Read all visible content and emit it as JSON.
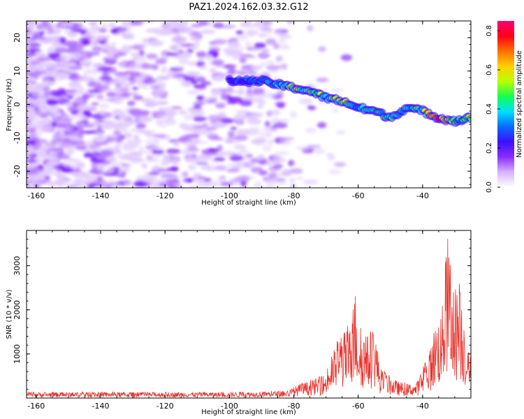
{
  "title": "PAZ1.2024.162.03.32.G12",
  "colors": {
    "signal": "#e8322b",
    "axis": "#000000",
    "rainbow": [
      "#ffffff",
      "#d6b3ff",
      "#8b2cff",
      "#3a10ff",
      "#0a6aff",
      "#00e0ff",
      "#12ff50",
      "#b8ff00",
      "#ffd000",
      "#ff7000",
      "#ff0018",
      "#ff0070"
    ]
  },
  "chart_data": [
    {
      "type": "heatmap",
      "name": "spectrogram",
      "xlabel": "Height of straight line (km)",
      "ylabel": "Frequency (Hz)",
      "xlim": [
        -163,
        -25
      ],
      "ylim": [
        -25,
        25
      ],
      "xticks": [
        -160,
        -140,
        -120,
        -100,
        -80,
        -60,
        -40
      ],
      "yticks": [
        -20,
        -10,
        0,
        10,
        20
      ],
      "colorbar": {
        "label": "Normalized spectral amplitude",
        "range": [
          0,
          0.85
        ],
        "ticks": [
          "0.0",
          "0.2",
          "0.4",
          "0.6",
          "0.8"
        ]
      },
      "ridge": {
        "x": [
          -100,
          -90,
          -85,
          -80,
          -75,
          -70,
          -65,
          -60,
          -55,
          -50,
          -45,
          -40,
          -35,
          -30,
          -25
        ],
        "y": [
          7,
          7,
          6,
          5,
          4,
          2,
          1,
          -1,
          -2,
          -4,
          -1,
          -2,
          -4,
          -5,
          -4
        ],
        "amplitude": [
          0.3,
          0.35,
          0.45,
          0.6,
          0.55,
          0.5,
          0.6,
          0.45,
          0.5,
          0.45,
          0.45,
          0.55,
          0.85,
          0.5,
          0.55
        ]
      }
    },
    {
      "type": "line",
      "name": "snr",
      "xlabel": "Height of straight line (km)",
      "ylabel": "SNR (10 * v/v)",
      "xlim": [
        -163,
        -25
      ],
      "ylim": [
        0,
        3800
      ],
      "xticks": [
        -160,
        -140,
        -120,
        -100,
        -80,
        -60,
        -40
      ],
      "yticks": [
        1000,
        2000,
        3000
      ],
      "envelope": {
        "x": [
          -163,
          -100,
          -82,
          -78,
          -75,
          -70,
          -68,
          -66,
          -64,
          -62,
          -61,
          -60,
          -59,
          -57,
          -55,
          -53,
          -51,
          -48,
          -45,
          -42,
          -40,
          -38,
          -36,
          -34,
          -33,
          -32,
          -31,
          -30,
          -29,
          -27,
          -26,
          -25
        ],
        "y": [
          120,
          120,
          150,
          300,
          350,
          500,
          900,
          1300,
          1400,
          1500,
          2300,
          1600,
          1400,
          1300,
          1500,
          600,
          500,
          350,
          300,
          300,
          600,
          900,
          1600,
          1800,
          2800,
          3500,
          2200,
          2300,
          2500,
          1700,
          900,
          1200
        ]
      }
    }
  ]
}
